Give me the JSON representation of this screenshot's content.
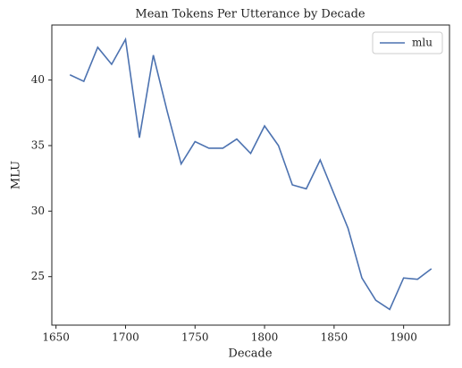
{
  "chart_data": {
    "type": "line",
    "title": "Mean Tokens Per Utterance by Decade",
    "x_label": "Decade",
    "y_label": "MLU",
    "x": [
      1660,
      1670,
      1680,
      1690,
      1700,
      1710,
      1720,
      1730,
      1740,
      1750,
      1760,
      1770,
      1780,
      1790,
      1800,
      1810,
      1820,
      1830,
      1840,
      1850,
      1860,
      1870,
      1880,
      1890,
      1900,
      1910,
      1920
    ],
    "series": [
      {
        "name": "mlu",
        "color": "#4c72b0",
        "values": [
          40.4,
          39.9,
          42.5,
          41.2,
          43.1,
          35.6,
          41.9,
          37.6,
          33.6,
          35.3,
          34.8,
          34.8,
          35.5,
          34.4,
          36.5,
          35.0,
          32.0,
          31.7,
          33.9,
          31.3,
          28.7,
          24.9,
          23.2,
          22.5,
          24.9,
          24.8,
          25.6
        ]
      }
    ],
    "xlim": [
      1647,
      1933
    ],
    "xticks": [
      1650,
      1700,
      1750,
      1800,
      1850,
      1900
    ],
    "ylim": [
      21.3,
      44.2
    ],
    "yticks": [
      25,
      30,
      35,
      40
    ],
    "grid": false,
    "legend": "upper right"
  }
}
